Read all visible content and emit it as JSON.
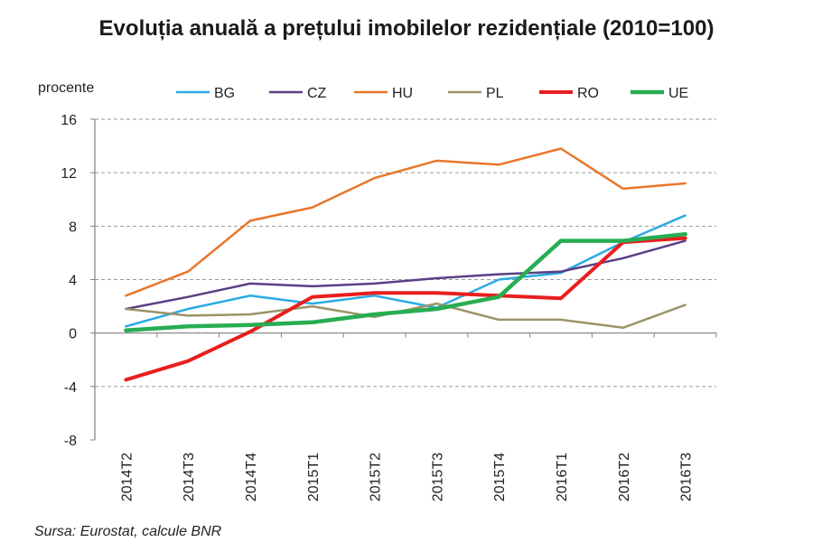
{
  "chart_data": {
    "type": "line",
    "title": "Evoluția anuală a prețului imobilelor rezidențiale (2010=100)",
    "ylabel": "procente",
    "xlabel": "",
    "ylim": [
      -8,
      16
    ],
    "yticks": [
      -8,
      -4,
      0,
      4,
      8,
      12,
      16
    ],
    "categories": [
      "2014T2",
      "2014T3",
      "2014T4",
      "2015T1",
      "2015T2",
      "2015T3",
      "2015T4",
      "2016T1",
      "2016T2",
      "2016T3"
    ],
    "series": [
      {
        "name": "BG",
        "color": "#29abe2",
        "width": 2.5,
        "values": [
          0.5,
          1.8,
          2.8,
          2.2,
          2.8,
          1.9,
          4.0,
          4.5,
          6.8,
          8.8
        ]
      },
      {
        "name": "CZ",
        "color": "#5b3f86",
        "width": 2.5,
        "values": [
          1.8,
          2.7,
          3.7,
          3.5,
          3.7,
          4.1,
          4.4,
          4.6,
          5.6,
          6.9
        ]
      },
      {
        "name": "HU",
        "color": "#e8762b",
        "width": 2.5,
        "values": [
          2.8,
          4.6,
          8.4,
          9.4,
          11.6,
          12.9,
          12.6,
          13.8,
          10.8,
          11.2
        ]
      },
      {
        "name": "PL",
        "color": "#9b946a",
        "width": 2.5,
        "values": [
          1.8,
          1.3,
          1.4,
          2.0,
          1.2,
          2.2,
          1.0,
          1.0,
          0.4,
          2.1
        ]
      },
      {
        "name": "RO",
        "color": "#e81e1e",
        "width": 4,
        "values": [
          -3.5,
          -2.1,
          0.1,
          2.7,
          3.0,
          3.0,
          2.8,
          2.6,
          6.8,
          7.1
        ]
      },
      {
        "name": "UE",
        "color": "#27ad52",
        "width": 4.5,
        "values": [
          0.2,
          0.5,
          0.6,
          0.8,
          1.4,
          1.8,
          2.7,
          6.9,
          6.9,
          7.4
        ]
      }
    ],
    "source": "Sursa: Eurostat, calcule BNR"
  }
}
